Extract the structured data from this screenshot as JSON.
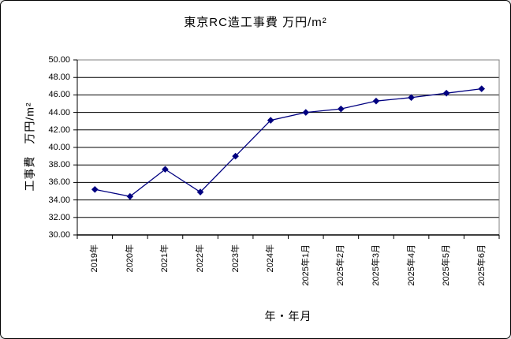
{
  "chart_data": {
    "type": "line",
    "title": "東京RC造工事費 万円/m²",
    "xlabel": "年・年月",
    "ylabel": "工事費　万円/m²",
    "categories": [
      "2019年",
      "2020年",
      "2021年",
      "2022年",
      "2023年",
      "2024年",
      "2025年1月",
      "2025年2月",
      "2025年3月",
      "2025年4月",
      "2025年5月",
      "2025年6月"
    ],
    "values": [
      35.2,
      34.4,
      37.5,
      34.9,
      39.0,
      43.1,
      44.0,
      44.4,
      45.3,
      45.7,
      46.2,
      46.7
    ],
    "ylim": [
      30,
      50
    ],
    "ytick_step": 2,
    "y_ticks": [
      "50.00",
      "48.00",
      "46.00",
      "44.00",
      "42.00",
      "40.00",
      "38.00",
      "36.00",
      "34.00",
      "32.00",
      "30.00"
    ],
    "grid": "horizontal-major",
    "legend": "none",
    "marker": "diamond",
    "colors": {
      "line": "#000080",
      "marker": "#000080",
      "gridline": "#000000",
      "plot_border": "#808080",
      "axis": "#000000",
      "background": "#ffffff",
      "frame_border": "#000000",
      "text": "#000000"
    }
  }
}
